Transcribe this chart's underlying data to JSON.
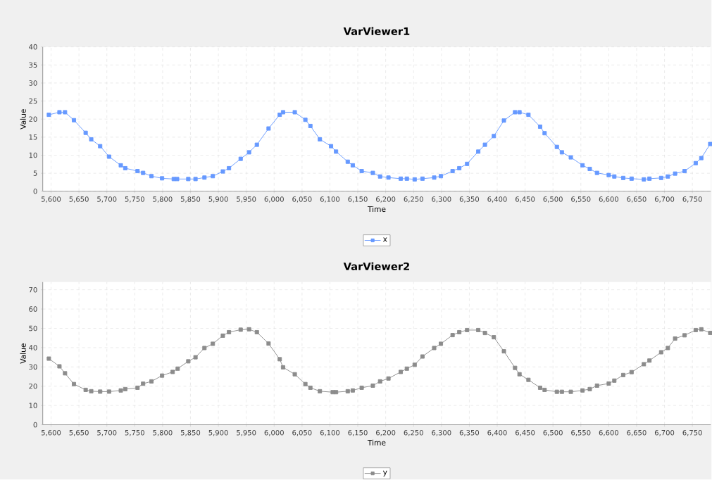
{
  "chart_data": [
    {
      "type": "line",
      "title": "VarViewer1",
      "xlabel": "Time",
      "ylabel": "Value",
      "grid": true,
      "legend": "bottom",
      "marker": "square",
      "line_style": "solid",
      "xlim": [
        5585,
        6783
      ],
      "ylim": [
        0,
        40
      ],
      "xticks": [
        {
          "value": 5600,
          "label": "5,600"
        },
        {
          "value": 5650,
          "label": "5,650"
        },
        {
          "value": 5700,
          "label": "5,700"
        },
        {
          "value": 5750,
          "label": "5,750"
        },
        {
          "value": 5800,
          "label": "5,800"
        },
        {
          "value": 5850,
          "label": "5,850"
        },
        {
          "value": 5900,
          "label": "5,900"
        },
        {
          "value": 5950,
          "label": "5,950"
        },
        {
          "value": 6000,
          "label": "6,000"
        },
        {
          "value": 6050,
          "label": "6,050"
        },
        {
          "value": 6100,
          "label": "6,100"
        },
        {
          "value": 6150,
          "label": "6,150"
        },
        {
          "value": 6200,
          "label": "6,200"
        },
        {
          "value": 6250,
          "label": "6,250"
        },
        {
          "value": 6300,
          "label": "6,300"
        },
        {
          "value": 6350,
          "label": "6,350"
        },
        {
          "value": 6400,
          "label": "6,400"
        },
        {
          "value": 6450,
          "label": "6,450"
        },
        {
          "value": 6500,
          "label": "6,500"
        },
        {
          "value": 6550,
          "label": "6,550"
        },
        {
          "value": 6600,
          "label": "6,600"
        },
        {
          "value": 6650,
          "label": "6,650"
        },
        {
          "value": 6700,
          "label": "6,700"
        },
        {
          "value": 6750,
          "label": "6,750"
        }
      ],
      "yticks": [
        0,
        5,
        10,
        15,
        20,
        25,
        30,
        35,
        40
      ],
      "x": [
        5596,
        5615,
        5625,
        5641,
        5662,
        5672,
        5688,
        5704,
        5725,
        5733,
        5755,
        5765,
        5780,
        5799,
        5820,
        5826,
        5846,
        5859,
        5875,
        5890,
        5908,
        5919,
        5940,
        5955,
        5969,
        5990,
        6010,
        6016,
        6037,
        6056,
        6065,
        6082,
        6102,
        6111,
        6132,
        6141,
        6157,
        6177,
        6190,
        6205,
        6227,
        6238,
        6252,
        6266,
        6287,
        6299,
        6320,
        6332,
        6346,
        6366,
        6378,
        6394,
        6412,
        6432,
        6440,
        6456,
        6477,
        6485,
        6507,
        6516,
        6532,
        6553,
        6566,
        6579,
        6600,
        6610,
        6626,
        6641,
        6663,
        6673,
        6694,
        6706,
        6719,
        6736,
        6756,
        6766,
        6782
      ],
      "series": [
        {
          "name": "x",
          "color": "#6699ff",
          "values": [
            21.2,
            21.9,
            21.9,
            19.7,
            16.2,
            14.4,
            12.5,
            9.6,
            7.2,
            6.4,
            5.6,
            5.1,
            4.2,
            3.6,
            3.4,
            3.4,
            3.4,
            3.4,
            3.8,
            4.2,
            5.5,
            6.4,
            9.0,
            10.8,
            12.9,
            17.4,
            21.2,
            21.9,
            21.9,
            19.8,
            18.1,
            14.4,
            12.5,
            11.0,
            8.2,
            7.2,
            5.6,
            5.1,
            4.1,
            3.8,
            3.5,
            3.5,
            3.3,
            3.5,
            3.8,
            4.2,
            5.6,
            6.4,
            7.6,
            11.0,
            12.9,
            15.3,
            19.6,
            21.9,
            21.9,
            21.2,
            17.9,
            16.1,
            12.3,
            10.8,
            9.4,
            7.2,
            6.2,
            5.1,
            4.5,
            4.1,
            3.7,
            3.5,
            3.3,
            3.5,
            3.7,
            4.1,
            4.9,
            5.6,
            7.8,
            9.2,
            13.1
          ]
        }
      ]
    },
    {
      "type": "line",
      "title": "VarViewer2",
      "xlabel": "Time",
      "ylabel": "Value",
      "grid": true,
      "legend": "bottom",
      "marker": "square",
      "line_style": "solid",
      "xlim": [
        5585,
        6783
      ],
      "ylim": [
        0,
        74
      ],
      "xticks": [
        {
          "value": 5600,
          "label": "5,600"
        },
        {
          "value": 5650,
          "label": "5,650"
        },
        {
          "value": 5700,
          "label": "5,700"
        },
        {
          "value": 5750,
          "label": "5,750"
        },
        {
          "value": 5800,
          "label": "5,800"
        },
        {
          "value": 5850,
          "label": "5,850"
        },
        {
          "value": 5900,
          "label": "5,900"
        },
        {
          "value": 5950,
          "label": "5,950"
        },
        {
          "value": 6000,
          "label": "6,000"
        },
        {
          "value": 6050,
          "label": "6,050"
        },
        {
          "value": 6100,
          "label": "6,100"
        },
        {
          "value": 6150,
          "label": "6,150"
        },
        {
          "value": 6200,
          "label": "6,200"
        },
        {
          "value": 6250,
          "label": "6,250"
        },
        {
          "value": 6300,
          "label": "6,300"
        },
        {
          "value": 6350,
          "label": "6,350"
        },
        {
          "value": 6400,
          "label": "6,400"
        },
        {
          "value": 6450,
          "label": "6,450"
        },
        {
          "value": 6500,
          "label": "6,500"
        },
        {
          "value": 6550,
          "label": "6,550"
        },
        {
          "value": 6600,
          "label": "6,600"
        },
        {
          "value": 6650,
          "label": "6,650"
        },
        {
          "value": 6700,
          "label": "6,700"
        },
        {
          "value": 6750,
          "label": "6,750"
        }
      ],
      "yticks": [
        0,
        10,
        20,
        30,
        40,
        50,
        60,
        70
      ],
      "x": [
        5596,
        5615,
        5625,
        5641,
        5662,
        5672,
        5688,
        5704,
        5725,
        5733,
        5755,
        5765,
        5780,
        5799,
        5818,
        5827,
        5846,
        5859,
        5875,
        5890,
        5908,
        5919,
        5940,
        5955,
        5969,
        5990,
        6010,
        6016,
        6037,
        6056,
        6065,
        6082,
        6105,
        6111,
        6132,
        6141,
        6157,
        6177,
        6190,
        6205,
        6227,
        6238,
        6252,
        6266,
        6287,
        6299,
        6320,
        6332,
        6346,
        6366,
        6378,
        6394,
        6412,
        6432,
        6440,
        6456,
        6477,
        6485,
        6507,
        6516,
        6532,
        6553,
        6566,
        6579,
        6600,
        6610,
        6626,
        6641,
        6663,
        6673,
        6694,
        6706,
        6719,
        6736,
        6756,
        6766,
        6782
      ],
      "series": [
        {
          "name": "y",
          "color": "#8c8c8c",
          "values": [
            34.3,
            30.3,
            26.7,
            21.1,
            18.1,
            17.4,
            17.2,
            17.2,
            17.8,
            18.5,
            19.2,
            21.3,
            22.5,
            25.5,
            27.4,
            29.1,
            32.9,
            35.0,
            39.8,
            42.0,
            46.2,
            48.0,
            49.3,
            49.5,
            48.0,
            42.1,
            34.0,
            29.8,
            26.2,
            21.1,
            19.2,
            17.4,
            16.9,
            16.9,
            17.4,
            17.8,
            19.2,
            20.3,
            22.5,
            24.0,
            27.4,
            29.1,
            31.1,
            35.4,
            39.8,
            42.0,
            46.5,
            48.0,
            49.1,
            49.1,
            47.6,
            45.4,
            38.1,
            29.5,
            26.2,
            23.3,
            19.2,
            18.1,
            17.1,
            17.1,
            17.1,
            17.8,
            18.5,
            20.3,
            21.4,
            22.9,
            25.8,
            27.3,
            31.4,
            33.3,
            37.6,
            39.8,
            44.7,
            46.4,
            49.1,
            49.5,
            47.6
          ]
        }
      ]
    }
  ]
}
